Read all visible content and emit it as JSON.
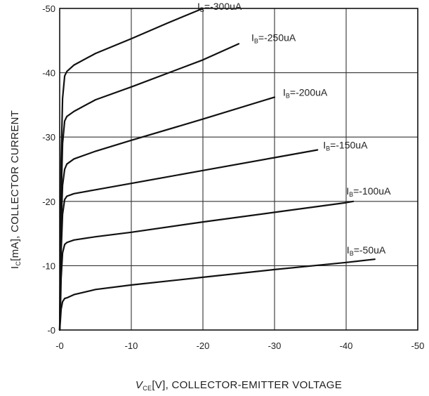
{
  "chart_data": {
    "type": "line",
    "title": "",
    "xlabel": {
      "symbol": "V",
      "subscript": "CE",
      "unit": "[V]",
      "text": ", COLLECTOR-EMITTER VOLTAGE"
    },
    "ylabel": {
      "symbol": "I",
      "subscript": "C",
      "unit": "[mA]",
      "text": ", COLLECTOR CURRENT"
    },
    "xlim": [
      0,
      -50
    ],
    "ylim": [
      0,
      -50
    ],
    "x_ticks": [
      "-0",
      "-10",
      "-20",
      "-30",
      "-40",
      "-50"
    ],
    "y_ticks": [
      "-0",
      "-10",
      "-20",
      "-30",
      "-40",
      "-50"
    ],
    "grid": true,
    "series": [
      {
        "name": "-50uA",
        "label": {
          "symbol": "I",
          "subscript": "B",
          "text": "=-50uA"
        },
        "x": [
          0,
          -0.1,
          -0.2,
          -0.4,
          -0.7,
          -1.0,
          -2,
          -5,
          -10,
          -20,
          -30,
          -40,
          -44
        ],
        "y": [
          0,
          -1.5,
          -3.2,
          -4.4,
          -4.9,
          -5.0,
          -5.5,
          -6.3,
          -7.0,
          -8.2,
          -9.4,
          -10.5,
          -11.0
        ]
      },
      {
        "name": "-100uA",
        "label": {
          "symbol": "I",
          "subscript": "B",
          "text": "=-100uA"
        },
        "x": [
          0,
          -0.1,
          -0.2,
          -0.4,
          -0.7,
          -1.0,
          -2,
          -5,
          -10,
          -20,
          -30,
          -40,
          -41
        ],
        "y": [
          0,
          -3,
          -8,
          -12,
          -13.3,
          -13.6,
          -14,
          -14.5,
          -15.2,
          -16.8,
          -18.3,
          -19.8,
          -20.0
        ]
      },
      {
        "name": "-150uA",
        "label": {
          "symbol": "I",
          "subscript": "B",
          "text": "=-150uA"
        },
        "x": [
          0,
          -0.1,
          -0.2,
          -0.4,
          -0.7,
          -1.0,
          -2,
          -5,
          -10,
          -20,
          -30,
          -36
        ],
        "y": [
          0,
          -5,
          -12,
          -18,
          -20.3,
          -20.8,
          -21.2,
          -21.8,
          -22.8,
          -24.8,
          -26.8,
          -28.0
        ]
      },
      {
        "name": "-200uA",
        "label": {
          "symbol": "I",
          "subscript": "B",
          "text": "=-200uA"
        },
        "x": [
          0,
          -0.1,
          -0.2,
          -0.4,
          -0.7,
          -1.0,
          -2,
          -5,
          -10,
          -20,
          -30
        ],
        "y": [
          0,
          -7,
          -16,
          -22.5,
          -25,
          -25.8,
          -26.6,
          -27.8,
          -29.5,
          -32.8,
          -36.2
        ]
      },
      {
        "name": "-250uA",
        "label": {
          "symbol": "I",
          "subscript": "B",
          "text": "=-250uA"
        },
        "x": [
          0,
          -0.1,
          -0.2,
          -0.4,
          -0.7,
          -1.0,
          -2,
          -5,
          -10,
          -20,
          -25
        ],
        "y": [
          0,
          -9,
          -20,
          -29,
          -32.5,
          -33.2,
          -34,
          -35.8,
          -37.8,
          -42,
          -44.5
        ]
      },
      {
        "name": "-300uA",
        "label": {
          "symbol": "I",
          "subscript": "B",
          "text": "=-300uA"
        },
        "x": [
          0,
          -0.1,
          -0.2,
          -0.4,
          -0.7,
          -1.0,
          -2,
          -5,
          -10,
          -15,
          -20
        ],
        "y": [
          0,
          -12,
          -26,
          -36,
          -39.5,
          -40.2,
          -41.2,
          -43,
          -45.3,
          -47.7,
          -50
        ]
      }
    ]
  }
}
